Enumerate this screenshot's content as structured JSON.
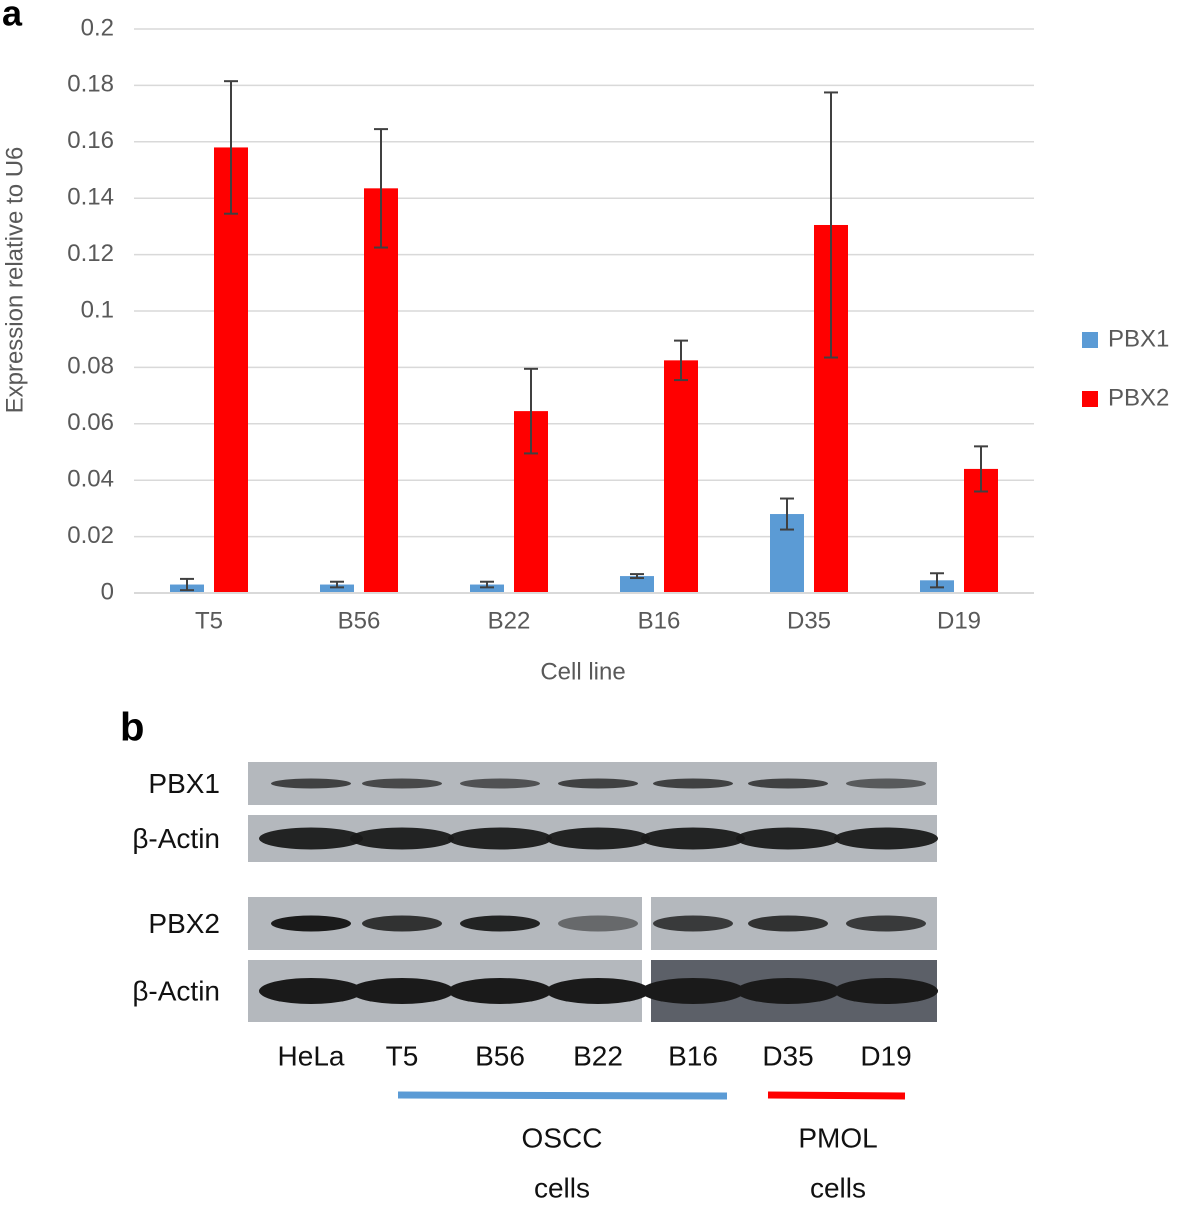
{
  "chart_data": {
    "type": "bar",
    "panel_label": "a",
    "x_label": "Cell line",
    "y_label": "Expression relative to U6",
    "categories": [
      "T5",
      "B56",
      "B22",
      "B16",
      "D35",
      "D19"
    ],
    "series": [
      {
        "name": "PBX1",
        "color": "#5b9bd5",
        "values": [
          0.003,
          0.003,
          0.003,
          0.006,
          0.028,
          0.0045
        ],
        "errors": [
          0.002,
          0.001,
          0.001,
          0.0007,
          0.0055,
          0.0025
        ]
      },
      {
        "name": "PBX2",
        "color": "#ff0000",
        "values": [
          0.158,
          0.1435,
          0.0645,
          0.0825,
          0.1305,
          0.044
        ],
        "errors": [
          0.0235,
          0.021,
          0.015,
          0.007,
          0.047,
          0.008
        ]
      }
    ],
    "ylim": [
      0,
      0.2
    ],
    "yticks": [
      0,
      0.02,
      0.04,
      0.06,
      0.08,
      0.1,
      0.12,
      0.14,
      0.16,
      0.18,
      0.2
    ],
    "grid": true,
    "legend": "right"
  },
  "panel_b": {
    "panel_label": "b",
    "blot_labels": [
      "PBX1",
      "β-Actin",
      "PBX2",
      "β-Actin"
    ],
    "lanes": [
      "HeLa",
      "T5",
      "B56",
      "B22",
      "B16",
      "D35",
      "D19"
    ],
    "groups": [
      {
        "lines": [
          "OSCC",
          "cells"
        ],
        "color": "#5b9bd5"
      },
      {
        "lines": [
          "PMOL",
          "cells"
        ],
        "color": "#ff0000"
      }
    ]
  }
}
